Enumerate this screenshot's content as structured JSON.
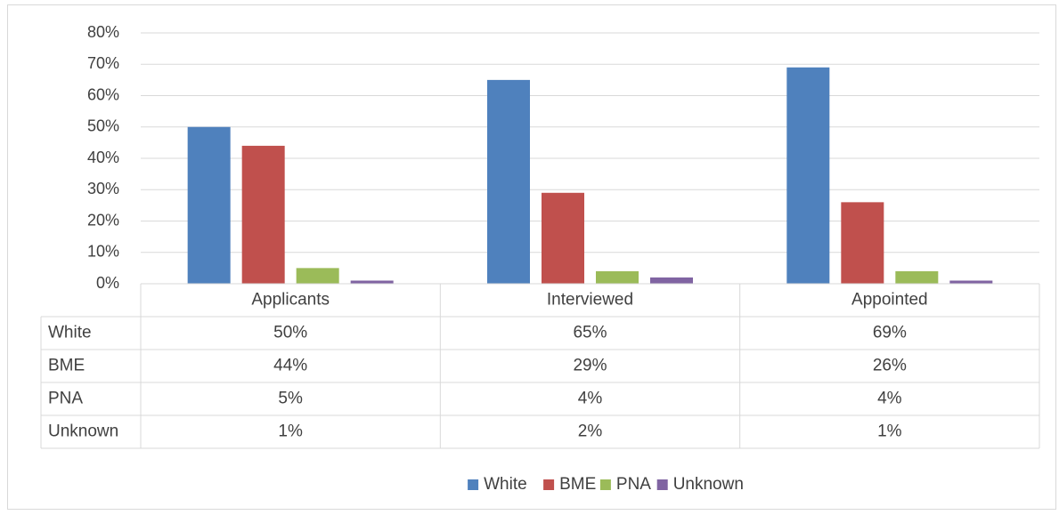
{
  "chart_data": {
    "type": "bar",
    "title": "",
    "xlabel": "",
    "ylabel": "",
    "categories": [
      "Applicants",
      "Interviewed",
      "Appointed"
    ],
    "series": [
      {
        "name": "White",
        "values": [
          50,
          65,
          69
        ],
        "labels": [
          "50%",
          "65%",
          "69%"
        ],
        "color": "#4f81bd"
      },
      {
        "name": "BME",
        "values": [
          44,
          29,
          26
        ],
        "labels": [
          "44%",
          "29%",
          "26%"
        ],
        "color": "#c0504d"
      },
      {
        "name": "PNA",
        "values": [
          5,
          4,
          4
        ],
        "labels": [
          "5%",
          "4%",
          "4%"
        ],
        "color": "#9bbb59"
      },
      {
        "name": "Unknown",
        "values": [
          1,
          2,
          1
        ],
        "labels": [
          "1%",
          "2%",
          "1%"
        ],
        "color": "#8064a2"
      }
    ],
    "ylim": [
      0,
      80
    ],
    "yticks": [
      "0%",
      "10%",
      "20%",
      "30%",
      "40%",
      "50%",
      "60%",
      "70%",
      "80%"
    ],
    "grid": true,
    "data_table": true,
    "legend": "bottom"
  }
}
